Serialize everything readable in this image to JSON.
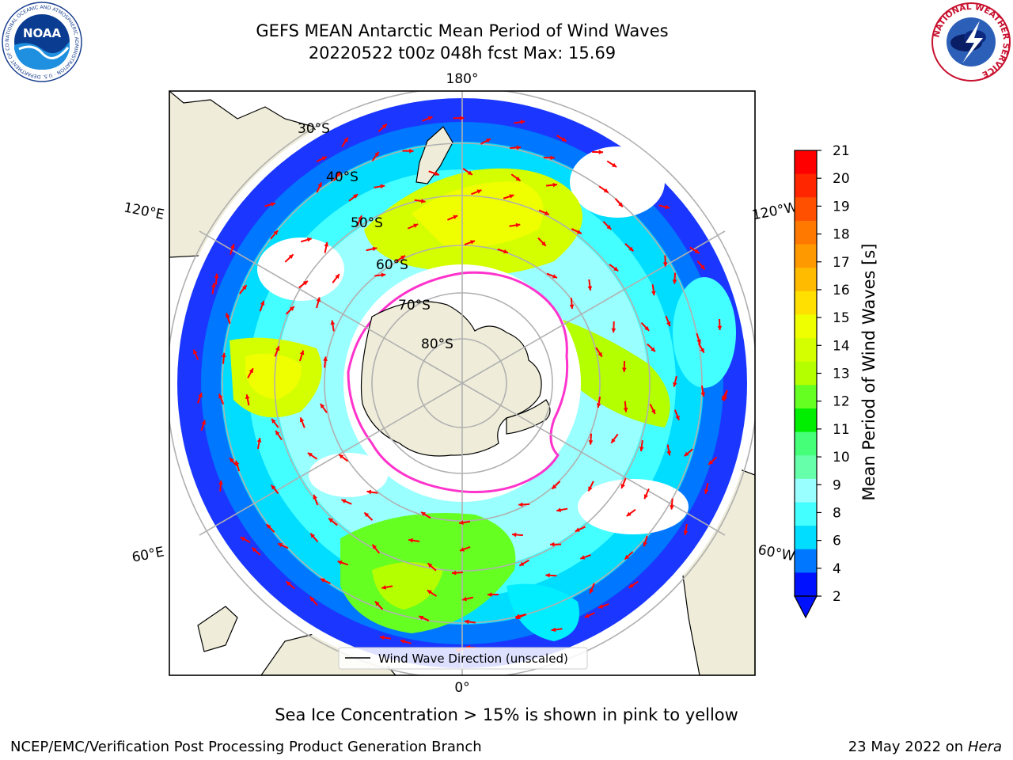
{
  "header": {
    "title": "GEFS MEAN Antarctic Mean Period of Wind Waves",
    "subtitle": "20220522 t00z 048h fcst   Max: 15.69"
  },
  "logos": {
    "left": {
      "text": "NOAA",
      "ring_text": "NATIONAL OCEANIC AND ATMOSPHERIC ADMINISTRATION · U.S. DEPARTMENT OF COMMERCE",
      "icon": "noaa-logo"
    },
    "right": {
      "ring_text": "NATIONAL WEATHER SERVICE",
      "icon": "nws-logo"
    }
  },
  "map": {
    "longitude_labels": [
      "180°",
      "120°E",
      "120°W",
      "60°E",
      "60°W",
      "0°"
    ],
    "latitude_labels": [
      "30°S",
      "40°S",
      "50°S",
      "60°S",
      "70°S",
      "80°S"
    ],
    "legend_label": "Wind Wave Direction (unscaled)",
    "colors": {
      "land": "#efedd9",
      "ocean_no_data": "#ffffff",
      "sea_ice_edge": "#ff33cc",
      "arrows": "#ff0000"
    }
  },
  "colorbar": {
    "label": "Mean Period of Wind Waves [s]",
    "ticks": [
      "21",
      "20",
      "19",
      "18",
      "17",
      "16",
      "15",
      "14",
      "13",
      "12",
      "11",
      "10",
      "9",
      "8",
      "6",
      "4",
      "2"
    ],
    "bands": [
      "#ff0000",
      "#ff2600",
      "#ff5000",
      "#ff7800",
      "#ff9900",
      "#ffbb00",
      "#ffe000",
      "#f0ff00",
      "#d4ff00",
      "#b4ff00",
      "#66ff22",
      "#00ee00",
      "#44ff77",
      "#66ffaa",
      "#99ffff",
      "#44ffff",
      "#00ddff",
      "#0077ff",
      "#0011ff"
    ]
  },
  "footer": {
    "note": "Sea Ice Concentration > 15% is shown in pink to yellow",
    "credit": "NCEP/EMC/Verification Post Processing Product Generation Branch",
    "date": "23 May 2022 on",
    "machine": "Hera"
  }
}
